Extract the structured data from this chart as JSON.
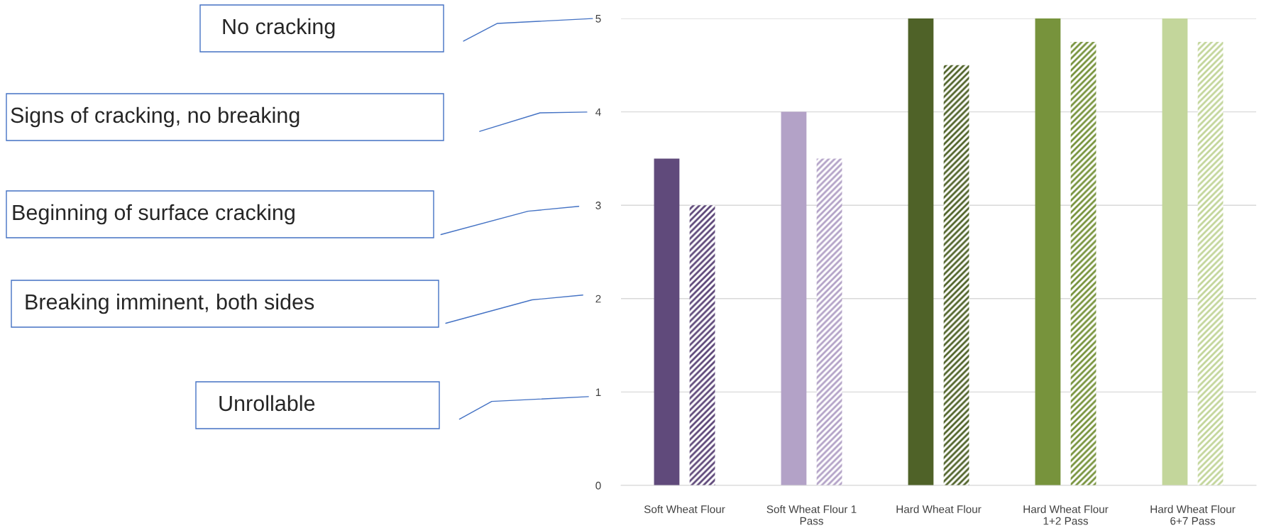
{
  "chart_data": {
    "type": "bar",
    "categories": [
      "Soft Wheat Flour",
      "Soft Wheat Flour 1 Pass",
      "Hard Wheat Flour",
      "Hard Wheat Flour 1+2 Pass",
      "Hard Wheat Flour 6+7 Pass"
    ],
    "series": [
      {
        "colors": [
          "#604a7b",
          "#b3a2c7",
          "#4f6228",
          "#77933c",
          "#c3d69b"
        ],
        "values": [
          3.5,
          4,
          5,
          5,
          5
        ]
      },
      {
        "colors": [
          "#604a7b",
          "#b3a2c7",
          "#4f6228",
          "#77933c",
          "#c3d69b"
        ],
        "values": [
          3,
          3.5,
          4.5,
          4.75,
          4.75
        ]
      }
    ],
    "ylim": [
      0,
      5
    ],
    "yticks": [
      0,
      1,
      2,
      3,
      4,
      5
    ],
    "grid": "y",
    "annotations": [
      "No cracking",
      "Signs of cracking, no breaking",
      "Beginning of surface cracking",
      "Breaking imminent, both sides",
      "Unrollable"
    ]
  }
}
